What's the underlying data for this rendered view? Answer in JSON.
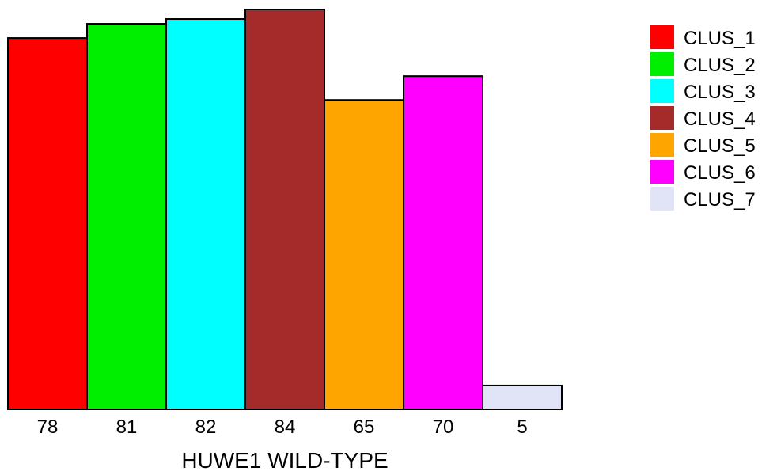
{
  "chart_data": {
    "type": "bar",
    "categories": [
      "CLUS_1",
      "CLUS_2",
      "CLUS_3",
      "CLUS_4",
      "CLUS_5",
      "CLUS_6",
      "CLUS_7"
    ],
    "values": [
      78,
      81,
      82,
      84,
      65,
      70,
      5
    ],
    "tick_labels": [
      "78",
      "81",
      "82",
      "84",
      "65",
      "70",
      "5"
    ],
    "colors": [
      "#ff0000",
      "#00ee00",
      "#00ffff",
      "#a52a2a",
      "#ffa500",
      "#ff00ff",
      "#e0e4f6"
    ],
    "xlabel": "HUWE1 WILD-TYPE",
    "ylabel": "",
    "ylim": [
      0,
      84
    ],
    "grid": false,
    "legend": {
      "placement": "top-right",
      "entries": [
        "CLUS_1",
        "CLUS_2",
        "CLUS_3",
        "CLUS_4",
        "CLUS_5",
        "CLUS_6",
        "CLUS_7"
      ]
    }
  }
}
